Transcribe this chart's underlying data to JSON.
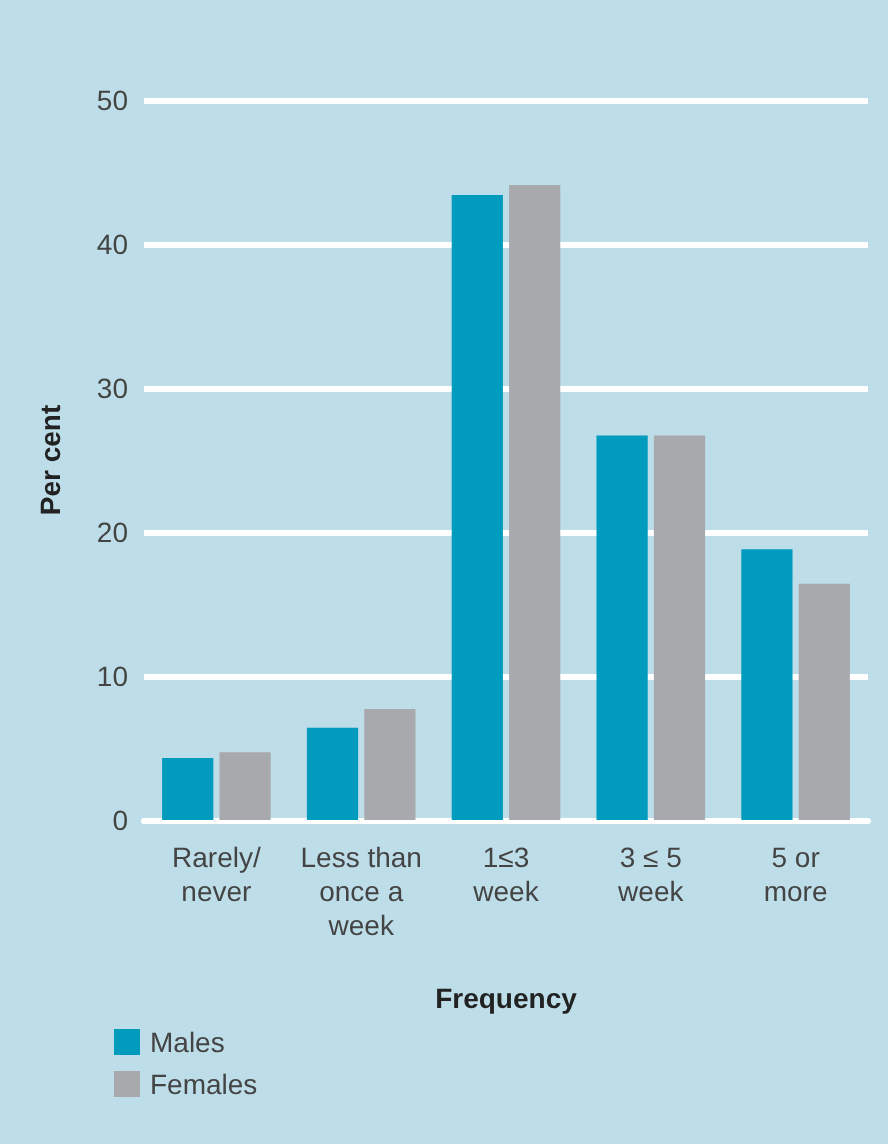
{
  "chart_data": {
    "type": "bar",
    "xlabel": "Frequency",
    "ylabel": "Per cent",
    "categories": [
      "Rarely/\nnever",
      "Less than\nonce a\nweek",
      "1≤3\nweek",
      "3 ≤ 5\nweek",
      "5 or\nmore"
    ],
    "series": [
      {
        "name": "Males",
        "color": "#009bbd",
        "values": [
          4.3,
          6.4,
          43.4,
          26.7,
          18.8
        ]
      },
      {
        "name": "Females",
        "color": "#a7a9ac",
        "values": [
          4.7,
          7.7,
          44.1,
          26.7,
          16.4
        ]
      }
    ],
    "ylim": [
      0,
      50
    ],
    "yticks": [
      0,
      10,
      20,
      30,
      40,
      50
    ],
    "grid": "y",
    "legend": "bottom left"
  }
}
